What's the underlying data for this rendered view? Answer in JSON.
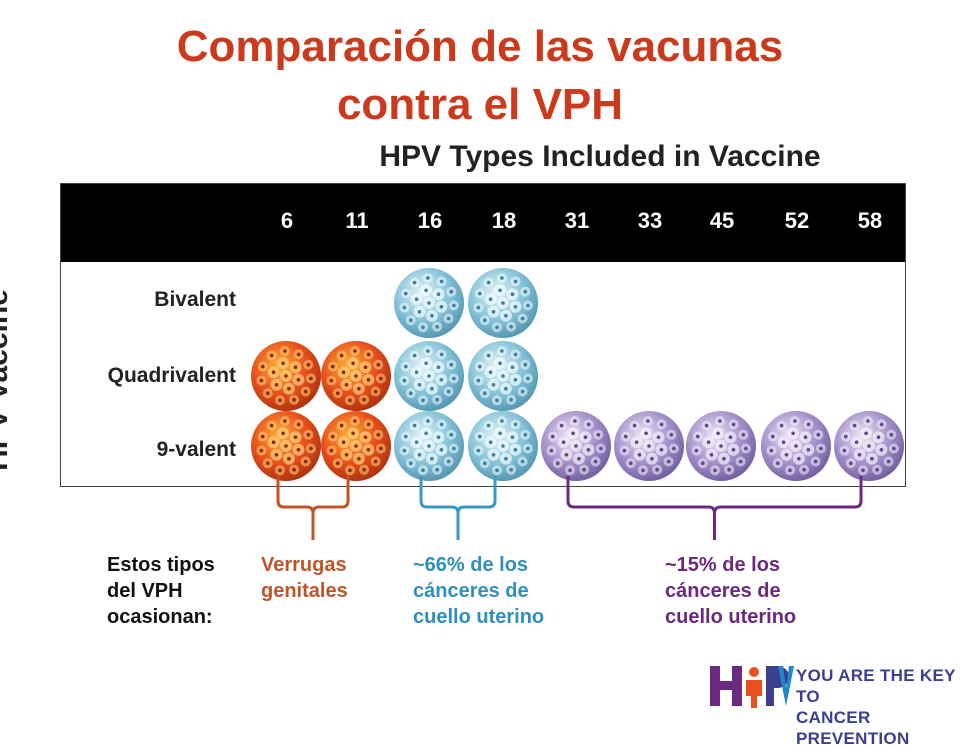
{
  "title_line1": "Comparación de las vacunas",
  "title_line2": "contra el VPH",
  "subtitle": "HPV Types Included in Vaccine",
  "vertical_axis_label": "HPV Vaccine",
  "hpv_types": [
    "6",
    "11",
    "16",
    "18",
    "31",
    "33",
    "45",
    "52",
    "58"
  ],
  "vaccines": [
    {
      "name": "Bivalent",
      "types": [
        "16",
        "18"
      ]
    },
    {
      "name": "Quadrivalent",
      "types": [
        "6",
        "11",
        "16",
        "18"
      ]
    },
    {
      "name": "9-valent",
      "types": [
        "6",
        "11",
        "16",
        "18",
        "31",
        "33",
        "45",
        "52",
        "58"
      ]
    }
  ],
  "type_groups": [
    {
      "types": [
        "6",
        "11"
      ],
      "color": "#c0552a",
      "virus_color": "#e8501c"
    },
    {
      "types": [
        "16",
        "18"
      ],
      "color": "#3b98c4",
      "virus_color": "#7cc0d8"
    },
    {
      "types": [
        "31",
        "33",
        "45",
        "52",
        "58"
      ],
      "color": "#6a2a82",
      "virus_color": "#9a84c4"
    }
  ],
  "notes": {
    "intro": [
      "Estos tipos",
      "del VPH",
      "ocasionan:"
    ],
    "group1": [
      "Verrugas",
      "genitales"
    ],
    "group2": [
      "~66% de los",
      "cánceres de",
      "cuello uterino"
    ],
    "group3": [
      "~15% de los",
      "cánceres de",
      "cuello uterino"
    ]
  },
  "logo": {
    "mark": "HPV",
    "line1": "YOU ARE THE KEY TO",
    "line2": "CANCER PREVENTION"
  }
}
